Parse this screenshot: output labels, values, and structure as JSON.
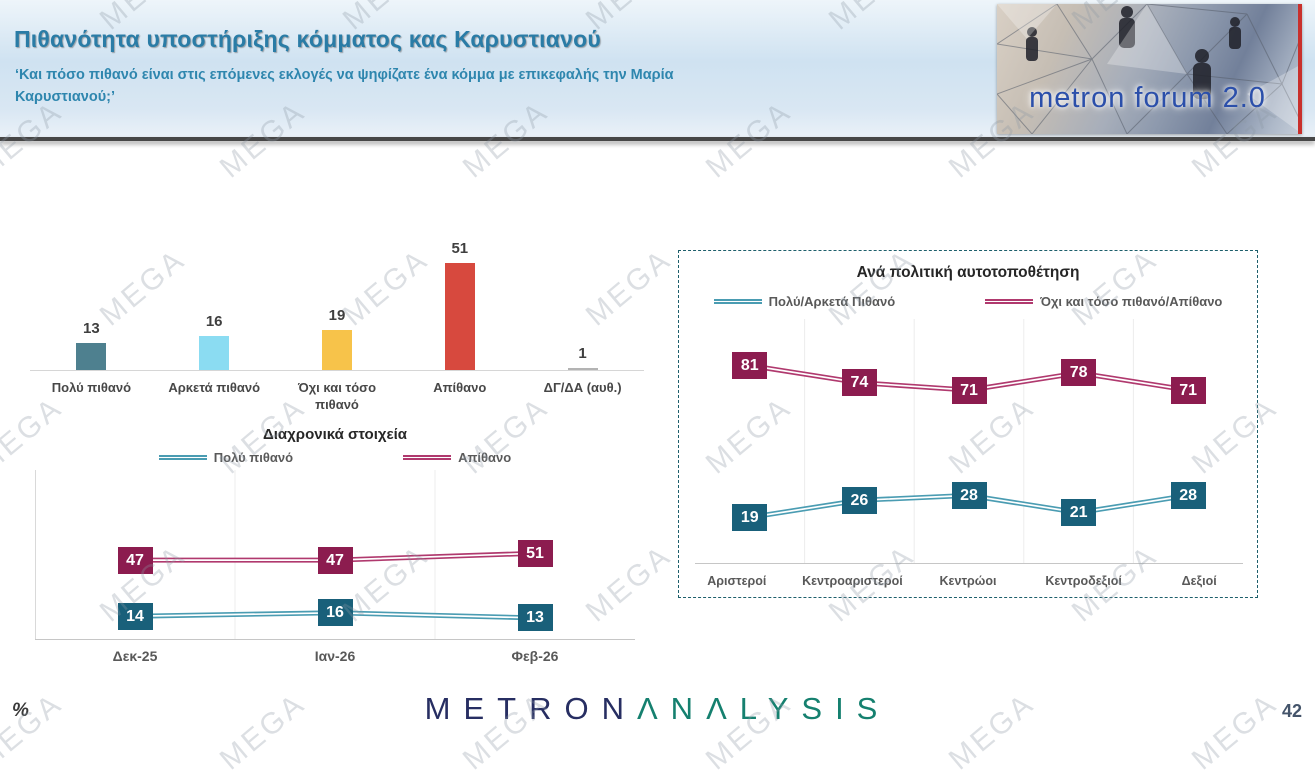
{
  "header": {
    "title": "Πιθανότητα υποστήριξης κόμματος κας Καρυστιανού",
    "subtitle_line1": "‘Και πόσο πιθανό είναι στις επόμενες εκλογές να ψηφίζατε ένα κόμμα με επικεφαλής την Μαρία",
    "subtitle_line2": "Καρυστιανού;’",
    "logo_text": "metron forum 2.0",
    "title_color": "#2a7ca6",
    "logo_accent_color": "#c9302c"
  },
  "watermark": {
    "text": "MEGA"
  },
  "chart_data": [
    {
      "name": "likelihood-bar-chart",
      "type": "bar",
      "categories": [
        "Πολύ πιθανό",
        "Αρκετά πιθανό",
        "Όχι και τόσο πιθανό",
        "Απίθανο",
        "ΔΓ/ΔΑ (αυθ.)"
      ],
      "values": [
        13,
        16,
        19,
        51,
        1
      ],
      "colors": [
        "#4e808f",
        "#8bdcf2",
        "#f7c34a",
        "#d7493e",
        "#b3b3b3"
      ],
      "unit": "%",
      "ylim": [
        0,
        60
      ]
    },
    {
      "name": "trend-line-chart",
      "type": "line",
      "title": "Διαχρονικά στοιχεία",
      "categories": [
        "Δεκ-25",
        "Ιαν-26",
        "Φεβ-26"
      ],
      "series": [
        {
          "name": "Πολύ πιθανό",
          "values": [
            14,
            16,
            13
          ],
          "line_color": "#4a9cb2",
          "box_color": "#19607a"
        },
        {
          "name": "Απίθανο",
          "values": [
            47,
            47,
            51
          ],
          "line_color": "#b0396e",
          "box_color": "#8c1c4f"
        }
      ],
      "ylim": [
        0,
        100
      ],
      "legend_position": "top",
      "grid": "vertical"
    },
    {
      "name": "political-placement-line-chart",
      "type": "line",
      "title": "Ανά πολιτική αυτοτοποθέτηση",
      "categories": [
        "Αριστεροί",
        "Κεντροαριστεροί",
        "Κεντρώοι",
        "Κεντροδεξιοί",
        "Δεξιοί"
      ],
      "series": [
        {
          "name": "Πολύ/Αρκετά Πιθανό",
          "values": [
            19,
            26,
            28,
            21,
            28
          ],
          "line_color": "#4a9cb2",
          "box_color": "#19607a"
        },
        {
          "name": "Όχι και τόσο πιθανό/Απίθανο",
          "values": [
            81,
            74,
            71,
            78,
            71
          ],
          "line_color": "#b0396e",
          "box_color": "#8c1c4f"
        }
      ],
      "ylim": [
        0,
        100
      ],
      "legend_position": "top",
      "grid": "vertical"
    }
  ],
  "footer": {
    "percent_label": "%",
    "logo_metron": "METRON",
    "logo_analysis": "ΛNΛLYSIS",
    "page_number": "42"
  }
}
